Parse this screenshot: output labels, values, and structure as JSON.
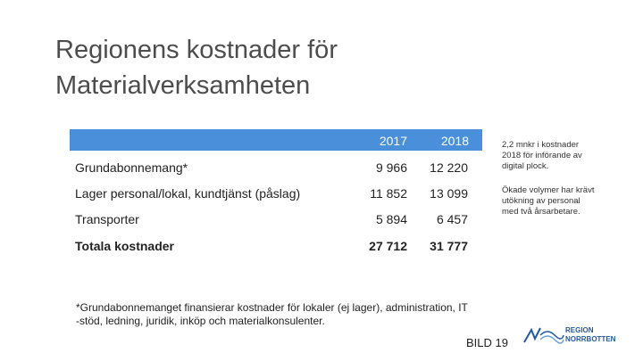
{
  "header": {
    "title_lines": [
      "Regionens kostnader för",
      "Materialverksamheten"
    ]
  },
  "table": {
    "columns": [
      "2017",
      "2018"
    ],
    "rows": [
      [
        "Grundabonnemang*",
        "9 966",
        "12 220"
      ],
      [
        "Lager personal/lokal, kundtjänst (påslag)",
        "11 852",
        "13 099"
      ],
      [
        "Transporter",
        "5 894",
        "6 457"
      ],
      [
        "Totala kostnader",
        "27 712",
        "31 777"
      ]
    ]
  },
  "notes": [
    [
      "2,2 mnkr i kostnader",
      "2018 för införande av",
      "digital plock."
    ],
    [
      "Ökade volymer har krävt",
      "utökning av personal",
      "med två årsarbetare."
    ]
  ],
  "footnote": [
    "*Grundabonnemanget finansierar kostnader för lokaler (ej lager), administration, IT",
    "-stöd, ledning, juridik, inköp och materialkonsulenter."
  ],
  "slide_label": "BILD 19",
  "logo": [
    "REGION",
    "NORRBOTTEN"
  ]
}
